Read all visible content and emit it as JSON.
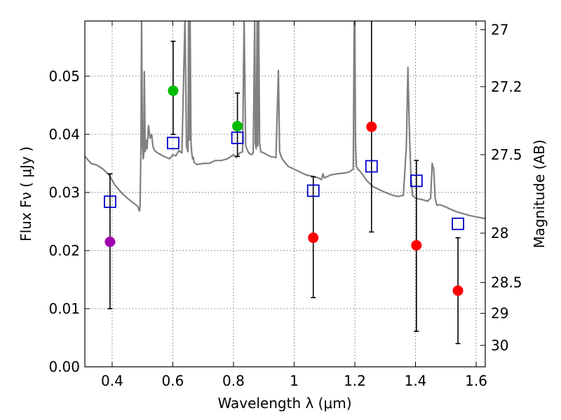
{
  "chart_data": {
    "type": "scatter",
    "title": "",
    "xlabel": "Wavelength  λ (μm)",
    "ylabel": "Flux  Fν  ( μJy )",
    "y2label": "Magnitude (AB)",
    "xlim": [
      0.31,
      1.63
    ],
    "ylim": [
      0.0,
      0.0595
    ],
    "grid": true,
    "xticks": [
      0.4,
      0.6,
      0.8,
      1.0,
      1.2,
      1.4,
      1.6
    ],
    "xtick_labels": [
      "0.4",
      "0.6",
      "0.8",
      "1",
      "1.2",
      "1.4",
      "1.6"
    ],
    "yticks": [
      0.0,
      0.01,
      0.02,
      0.03,
      0.04,
      0.05
    ],
    "ytick_labels": [
      "0.00",
      "0.01",
      "0.02",
      "0.03",
      "0.04",
      "0.05"
    ],
    "y2ticks": [
      {
        "label": "27",
        "flux": 0.058
      },
      {
        "label": "27.2",
        "flux": 0.0482
      },
      {
        "label": "27.5",
        "flux": 0.0365
      },
      {
        "label": "28",
        "flux": 0.023
      },
      {
        "label": "28.5",
        "flux": 0.0145
      },
      {
        "label": "29",
        "flux": 0.0092
      },
      {
        "label": "30",
        "flux": 0.0037
      }
    ],
    "observed": [
      {
        "x": 0.393,
        "y": 0.0215,
        "yerr_low": 0.01,
        "yerr_high": 0.0332,
        "color": "#a000b0"
      },
      {
        "x": 0.601,
        "y": 0.0475,
        "yerr_low": 0.04,
        "yerr_high": 0.056,
        "color": "#00bb00"
      },
      {
        "x": 0.813,
        "y": 0.0414,
        "yerr_low": 0.0362,
        "yerr_high": 0.0471,
        "color": "#00bb00"
      },
      {
        "x": 1.063,
        "y": 0.0222,
        "yerr_low": 0.0119,
        "yerr_high": 0.0327,
        "color": "#ff0000"
      },
      {
        "x": 1.255,
        "y": 0.0413,
        "yerr_low": 0.0232,
        "yerr_high": 0.06,
        "color": "#ff0000"
      },
      {
        "x": 1.403,
        "y": 0.0209,
        "yerr_low": 0.0061,
        "yerr_high": 0.0355,
        "color": "#ff0000"
      },
      {
        "x": 1.54,
        "y": 0.0131,
        "yerr_low": 0.004,
        "yerr_high": 0.0222,
        "color": "#ff0000"
      }
    ],
    "model_bands": {
      "x": [
        0.393,
        0.601,
        0.813,
        1.063,
        1.255,
        1.403,
        1.54
      ],
      "y": [
        0.0284,
        0.0385,
        0.0394,
        0.0303,
        0.0345,
        0.032,
        0.0246
      ],
      "color": "#0000cc"
    },
    "spectrum": {
      "color": "#808080",
      "x": [
        0.31,
        0.33,
        0.35,
        0.37,
        0.39,
        0.41,
        0.43,
        0.45,
        0.47,
        0.485,
        0.488,
        0.49,
        0.492,
        0.495,
        0.497,
        0.5,
        0.502,
        0.504,
        0.506,
        0.509,
        0.512,
        0.515,
        0.52,
        0.525,
        0.53,
        0.535,
        0.54,
        0.55,
        0.56,
        0.57,
        0.58,
        0.59,
        0.6,
        0.61,
        0.62,
        0.63,
        0.64,
        0.645,
        0.65,
        0.652,
        0.655,
        0.657,
        0.66,
        0.662,
        0.665,
        0.668,
        0.67,
        0.68,
        0.7,
        0.72,
        0.74,
        0.76,
        0.78,
        0.8,
        0.81,
        0.82,
        0.83,
        0.835,
        0.84,
        0.85,
        0.86,
        0.865,
        0.87,
        0.872,
        0.875,
        0.878,
        0.88,
        0.883,
        0.886,
        0.89,
        0.9,
        0.92,
        0.94,
        0.948,
        0.952,
        0.96,
        0.98,
        1.0,
        1.02,
        1.04,
        1.06,
        1.08,
        1.09,
        1.095,
        1.1,
        1.12,
        1.14,
        1.16,
        1.18,
        1.195,
        1.198,
        1.2,
        1.202,
        1.205,
        1.21,
        1.22,
        1.24,
        1.26,
        1.28,
        1.3,
        1.32,
        1.34,
        1.36,
        1.37,
        1.375,
        1.38,
        1.385,
        1.39,
        1.4,
        1.42,
        1.44,
        1.45,
        1.455,
        1.46,
        1.465,
        1.47,
        1.48,
        1.5,
        1.52,
        1.54,
        1.56,
        1.58,
        1.6,
        1.63
      ],
      "y": [
        0.0362,
        0.035,
        0.0347,
        0.034,
        0.033,
        0.0312,
        0.03,
        0.029,
        0.0282,
        0.0276,
        0.027,
        0.0268,
        0.0275,
        0.038,
        0.06,
        0.038,
        0.0358,
        0.0362,
        0.0508,
        0.037,
        0.039,
        0.0375,
        0.0415,
        0.0393,
        0.04,
        0.0378,
        0.0372,
        0.0368,
        0.0365,
        0.0362,
        0.036,
        0.0358,
        0.0365,
        0.0363,
        0.0372,
        0.0368,
        0.06,
        0.038,
        0.037,
        0.06,
        0.039,
        0.06,
        0.0385,
        0.037,
        0.0358,
        0.036,
        0.0352,
        0.0348,
        0.035,
        0.035,
        0.0355,
        0.0355,
        0.0358,
        0.0365,
        0.036,
        0.0368,
        0.037,
        0.06,
        0.038,
        0.0368,
        0.0365,
        0.0368,
        0.06,
        0.0385,
        0.0375,
        0.06,
        0.038,
        0.06,
        0.0385,
        0.037,
        0.0368,
        0.0362,
        0.036,
        0.051,
        0.037,
        0.0358,
        0.0345,
        0.034,
        0.0335,
        0.033,
        0.0328,
        0.0325,
        0.0322,
        0.0332,
        0.0325,
        0.033,
        0.0332,
        0.0333,
        0.0335,
        0.034,
        0.06,
        0.06,
        0.039,
        0.0345,
        0.034,
        0.0335,
        0.032,
        0.031,
        0.0305,
        0.03,
        0.0296,
        0.0293,
        0.0295,
        0.038,
        0.0515,
        0.04,
        0.033,
        0.0295,
        0.029,
        0.0288,
        0.0285,
        0.029,
        0.035,
        0.034,
        0.029,
        0.0278,
        0.0279,
        0.0275,
        0.027,
        0.0266,
        0.0263,
        0.026,
        0.0258,
        0.0255
      ]
    }
  }
}
